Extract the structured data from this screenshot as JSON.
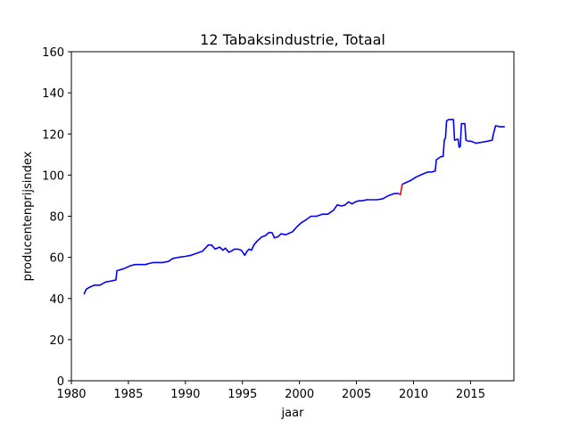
{
  "chart_data": {
    "type": "line",
    "title": "12 Tabaksindustrie, Totaal",
    "xlabel": "jaar",
    "ylabel": "producentenprijsindex",
    "xlim": [
      1980,
      2018.8
    ],
    "ylim": [
      0,
      160
    ],
    "xticks": [
      1980,
      1985,
      1990,
      1995,
      2000,
      2005,
      2010,
      2015
    ],
    "yticks": [
      0,
      20,
      40,
      60,
      80,
      100,
      120,
      140,
      160
    ],
    "grid": false,
    "colors": {
      "main": "#0000ff",
      "highlight": "#ff0000",
      "axes": "#000000"
    },
    "series": [
      {
        "color": "#0000ff",
        "x": [
          1981.1,
          1981.3,
          1981.6,
          1982.0,
          1982.5,
          1983.0,
          1983.5,
          1983.9,
          1984.0,
          1984.6,
          1985.2,
          1985.6,
          1986.0,
          1986.5,
          1986.8,
          1987.2,
          1987.6,
          1988.0,
          1988.5,
          1988.9,
          1989.4,
          1990.0,
          1990.5,
          1991.0,
          1991.5,
          1992.0,
          1992.3,
          1992.6,
          1993.0,
          1993.3,
          1993.5,
          1993.8,
          1994.0,
          1994.3,
          1994.6,
          1994.9,
          1995.2,
          1995.4,
          1995.6,
          1995.8,
          1996.0,
          1996.3,
          1996.7,
          1997.0,
          1997.3,
          1997.6,
          1997.8,
          1998.1,
          1998.4,
          1998.8,
          1999.0,
          1999.4,
          1999.8,
          2000.2,
          2000.5,
          2001.0,
          2001.5,
          2002.0,
          2002.5,
          2003.0,
          2003.3,
          2003.7,
          2004.0,
          2004.3,
          2004.6,
          2004.9,
          2005.2,
          2005.5,
          2005.9,
          2006.3,
          2006.8,
          2007.3,
          2007.8,
          2008.3,
          2008.7
        ],
        "y": [
          42,
          44.5,
          45.5,
          46.5,
          46.5,
          48,
          48.5,
          49,
          53.5,
          54.5,
          56,
          56.5,
          56.5,
          56.5,
          57,
          57.5,
          57.5,
          57.5,
          58,
          59.5,
          60,
          60.5,
          61,
          62,
          63,
          66,
          66,
          64,
          65,
          63.5,
          64.5,
          62.5,
          63,
          64,
          64,
          63.5,
          61,
          63,
          64,
          63.5,
          66,
          68,
          70,
          70.5,
          72,
          72,
          69.5,
          70,
          71.5,
          71,
          71.5,
          72.5,
          75,
          77,
          78,
          80,
          80,
          81,
          81,
          83,
          85.5,
          85,
          85.5,
          87,
          86,
          87,
          87.5,
          87.5,
          88,
          88,
          88,
          88.5,
          90,
          91,
          91
        ]
      },
      {
        "color": "#ff0000",
        "x": [
          2008.7,
          2008.85,
          2009.0
        ],
        "y": [
          91,
          90.5,
          95.5
        ]
      },
      {
        "color": "#0000ff",
        "x": [
          2009.0,
          2009.4,
          2009.8,
          2010.2,
          2010.6,
          2011.0,
          2011.3,
          2011.6,
          2011.9,
          2012.0,
          2012.4,
          2012.6,
          2012.7,
          2012.8,
          2012.9,
          2013.1,
          2013.5,
          2013.6,
          2013.9,
          2014.0,
          2014.1,
          2014.2,
          2014.3,
          2014.5,
          2014.6,
          2014.8,
          2015.0,
          2015.5,
          2016.0,
          2016.5,
          2016.9,
          2017.0,
          2017.2,
          2017.6,
          2018.0
        ],
        "y": [
          95.5,
          96.5,
          97.5,
          99,
          100,
          101,
          101.5,
          101.5,
          102,
          107.5,
          109,
          109,
          117,
          118,
          126.5,
          127,
          127,
          117,
          117.5,
          113.5,
          114,
          125,
          125,
          125,
          117,
          116.5,
          116.5,
          115.5,
          116,
          116.5,
          117,
          120,
          124,
          123.5,
          123.5
        ]
      }
    ]
  }
}
